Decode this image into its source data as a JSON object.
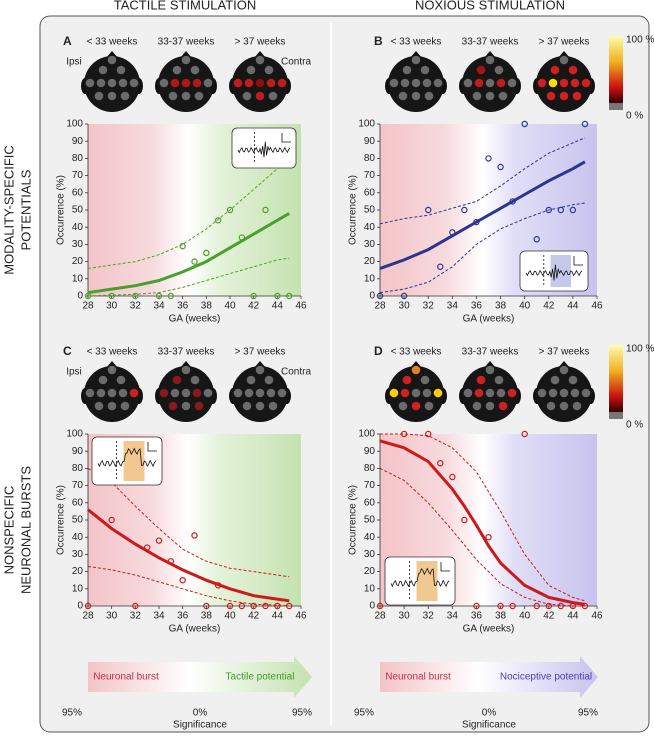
{
  "figure": {
    "columns": [
      "TACTILE STIMULATION",
      "NOXIOUS STIMULATION"
    ],
    "rows": [
      [
        "MODALITY-SPECIFIC",
        "POTENTIALS"
      ],
      [
        "NONSPECIFIC",
        "NEURONAL BURSTS"
      ]
    ],
    "colorbars": [
      {
        "max": "100 %",
        "min": "0 %"
      },
      {
        "max": "100 %",
        "min": "0 %"
      }
    ],
    "legends": [
      {
        "left": "Neuronal burst",
        "right": "Tactile potential",
        "ticks": [
          "95%",
          "0%",
          "95%"
        ],
        "label": "Significance"
      },
      {
        "left": "Neuronal burst",
        "right": "Nociceptive potential",
        "ticks": [
          "95%",
          "0%",
          "95%"
        ],
        "label": "Significance"
      }
    ]
  },
  "chart_data": [
    {
      "type": "scatter",
      "title": "A",
      "head_labels": [
        "< 33 weeks",
        "33-37 weeks",
        "> 37 weeks"
      ],
      "side_labels": [
        "Ipsi",
        "Contra"
      ],
      "xlabel": "GA (weeks)",
      "ylabel": "Occurrence (%)",
      "xlim": [
        28,
        46
      ],
      "ylim": [
        0,
        100
      ],
      "xticks": [
        28,
        30,
        32,
        34,
        36,
        38,
        40,
        42,
        44,
        46
      ],
      "yticks": [
        0,
        10,
        20,
        30,
        40,
        50,
        60,
        70,
        80,
        90,
        100
      ],
      "series": [
        {
          "mark": "scatter",
          "color": "#4aa02c",
          "x": [
            28,
            30,
            32,
            34,
            35,
            36,
            37,
            38,
            39,
            40,
            41,
            42,
            43,
            44,
            45
          ],
          "values": [
            0,
            0,
            0,
            0,
            0,
            29,
            20,
            25,
            44,
            50,
            34,
            0,
            50,
            0,
            0
          ]
        },
        {
          "mark": "line",
          "color": "#4aa02c",
          "x": [
            28,
            30,
            32,
            34,
            36,
            38,
            40,
            42,
            44,
            45
          ],
          "values": [
            2,
            4,
            6,
            9,
            14,
            20,
            28,
            36,
            44,
            48
          ]
        },
        {
          "mark": "line",
          "dashed": true,
          "color": "#4aa02c",
          "x": [
            28,
            30,
            32,
            34,
            36,
            38,
            40,
            42,
            44,
            45
          ],
          "values": [
            16,
            18,
            20,
            24,
            30,
            39,
            50,
            62,
            74,
            80
          ]
        },
        {
          "mark": "line",
          "dashed": true,
          "color": "#4aa02c",
          "x": [
            28,
            30,
            32,
            34,
            36,
            38,
            40,
            42,
            44,
            45
          ],
          "values": [
            0,
            0.5,
            1,
            2,
            5,
            9,
            13,
            17,
            21,
            22
          ]
        }
      ]
    },
    {
      "type": "scatter",
      "title": "B",
      "head_labels": [
        "< 33 weeks",
        "33-37 weeks",
        "> 37 weeks"
      ],
      "xlabel": "GA (weeks)",
      "ylabel": "Occurrence (%)",
      "xlim": [
        28,
        46
      ],
      "ylim": [
        0,
        100
      ],
      "xticks": [
        28,
        30,
        32,
        34,
        36,
        38,
        40,
        42,
        44,
        46
      ],
      "yticks": [
        0,
        10,
        20,
        30,
        40,
        50,
        60,
        70,
        80,
        90,
        100
      ],
      "series": [
        {
          "mark": "scatter",
          "color": "#2b3590",
          "x": [
            28,
            30,
            32,
            33,
            34,
            35,
            36,
            37,
            38,
            39,
            40,
            41,
            42,
            43,
            44,
            45
          ],
          "values": [
            0,
            0,
            50,
            17,
            37,
            50,
            43,
            80,
            75,
            55,
            100,
            33,
            50,
            50,
            50,
            100
          ]
        },
        {
          "mark": "line",
          "color": "#2b3590",
          "x": [
            28,
            30,
            32,
            34,
            36,
            38,
            40,
            42,
            44,
            45
          ],
          "values": [
            16,
            21,
            27,
            35,
            43,
            51,
            59,
            67,
            74,
            78
          ]
        },
        {
          "mark": "line",
          "dashed": true,
          "color": "#2b3590",
          "x": [
            28,
            30,
            32,
            34,
            36,
            38,
            40,
            42,
            44,
            45
          ],
          "values": [
            42,
            45,
            47,
            51,
            55,
            64,
            74,
            83,
            89,
            92
          ]
        },
        {
          "mark": "line",
          "dashed": true,
          "color": "#2b3590",
          "x": [
            28,
            30,
            32,
            34,
            36,
            38,
            40,
            42,
            44,
            45
          ],
          "values": [
            2,
            4,
            8,
            17,
            30,
            39,
            45,
            50,
            53,
            54
          ]
        }
      ]
    },
    {
      "type": "scatter",
      "title": "C",
      "head_labels": [
        "< 33 weeks",
        "33-37 weeks",
        "> 37 weeks"
      ],
      "side_labels": [
        "Ipsi",
        "Contra"
      ],
      "xlabel": "GA (weeks)",
      "ylabel": "Occurrence (%)",
      "xlim": [
        28,
        46
      ],
      "ylim": [
        0,
        100
      ],
      "xticks": [
        28,
        30,
        32,
        34,
        36,
        38,
        40,
        42,
        44,
        46
      ],
      "yticks": [
        0,
        10,
        20,
        30,
        40,
        50,
        60,
        70,
        80,
        90,
        100
      ],
      "series": [
        {
          "mark": "scatter",
          "color": "#cc1a1a",
          "x": [
            28,
            30,
            32,
            33,
            34,
            35,
            36,
            37,
            38,
            39,
            40,
            41,
            42,
            43,
            44,
            45
          ],
          "values": [
            0,
            50,
            0,
            34,
            38,
            26,
            15,
            41,
            0,
            12,
            0,
            0,
            0,
            0,
            0,
            0
          ]
        },
        {
          "mark": "line",
          "color": "#cc1a1a",
          "x": [
            28,
            30,
            32,
            34,
            36,
            38,
            40,
            42,
            44,
            45
          ],
          "values": [
            56,
            45,
            36,
            28,
            21,
            15,
            10,
            6,
            4,
            3
          ]
        },
        {
          "mark": "line",
          "dashed": true,
          "color": "#cc1a1a",
          "x": [
            28,
            30,
            32,
            34,
            36,
            38,
            40,
            42,
            44,
            45
          ],
          "values": [
            80,
            72,
            58,
            45,
            33,
            26,
            22,
            20,
            18,
            17
          ]
        },
        {
          "mark": "line",
          "dashed": true,
          "color": "#cc1a1a",
          "x": [
            28,
            30,
            32,
            34,
            36,
            38,
            40,
            42,
            44,
            45
          ],
          "values": [
            23,
            21,
            18,
            14,
            10,
            6,
            3,
            1,
            0.5,
            0
          ]
        }
      ]
    },
    {
      "type": "scatter",
      "title": "D",
      "head_labels": [
        "< 33 weeks",
        "33-37 weeks",
        "> 37 weeks"
      ],
      "xlabel": "GA (weeks)",
      "ylabel": "Occurrence (%)",
      "xlim": [
        28,
        46
      ],
      "ylim": [
        0,
        100
      ],
      "xticks": [
        28,
        30,
        32,
        34,
        36,
        38,
        40,
        42,
        44,
        46
      ],
      "yticks": [
        0,
        10,
        20,
        30,
        40,
        50,
        60,
        70,
        80,
        90,
        100
      ],
      "series": [
        {
          "mark": "scatter",
          "color": "#cc1a1a",
          "x": [
            28,
            30,
            32,
            33,
            34,
            35,
            36,
            37,
            38,
            39,
            40,
            41,
            42,
            43,
            44,
            45
          ],
          "values": [
            0,
            100,
            100,
            83,
            75,
            50,
            0,
            40,
            0,
            0,
            100,
            0,
            0,
            0,
            0,
            0
          ]
        },
        {
          "mark": "line",
          "color": "#cc1a1a",
          "x": [
            28,
            30,
            32,
            34,
            35,
            36,
            37,
            38,
            40,
            42,
            44,
            45
          ],
          "values": [
            96,
            92,
            84,
            68,
            58,
            47,
            35,
            25,
            12,
            5,
            2,
            1
          ]
        },
        {
          "mark": "line",
          "dashed": true,
          "color": "#cc1a1a",
          "x": [
            28,
            30,
            32,
            34,
            36,
            38,
            40,
            42,
            44,
            45
          ],
          "values": [
            100,
            100,
            99,
            92,
            78,
            55,
            30,
            12,
            5,
            3
          ]
        },
        {
          "mark": "line",
          "dashed": true,
          "color": "#cc1a1a",
          "x": [
            28,
            30,
            32,
            34,
            36,
            38,
            40,
            42,
            44,
            45
          ],
          "values": [
            80,
            73,
            60,
            44,
            27,
            13,
            5,
            1,
            0,
            0
          ]
        }
      ]
    }
  ]
}
